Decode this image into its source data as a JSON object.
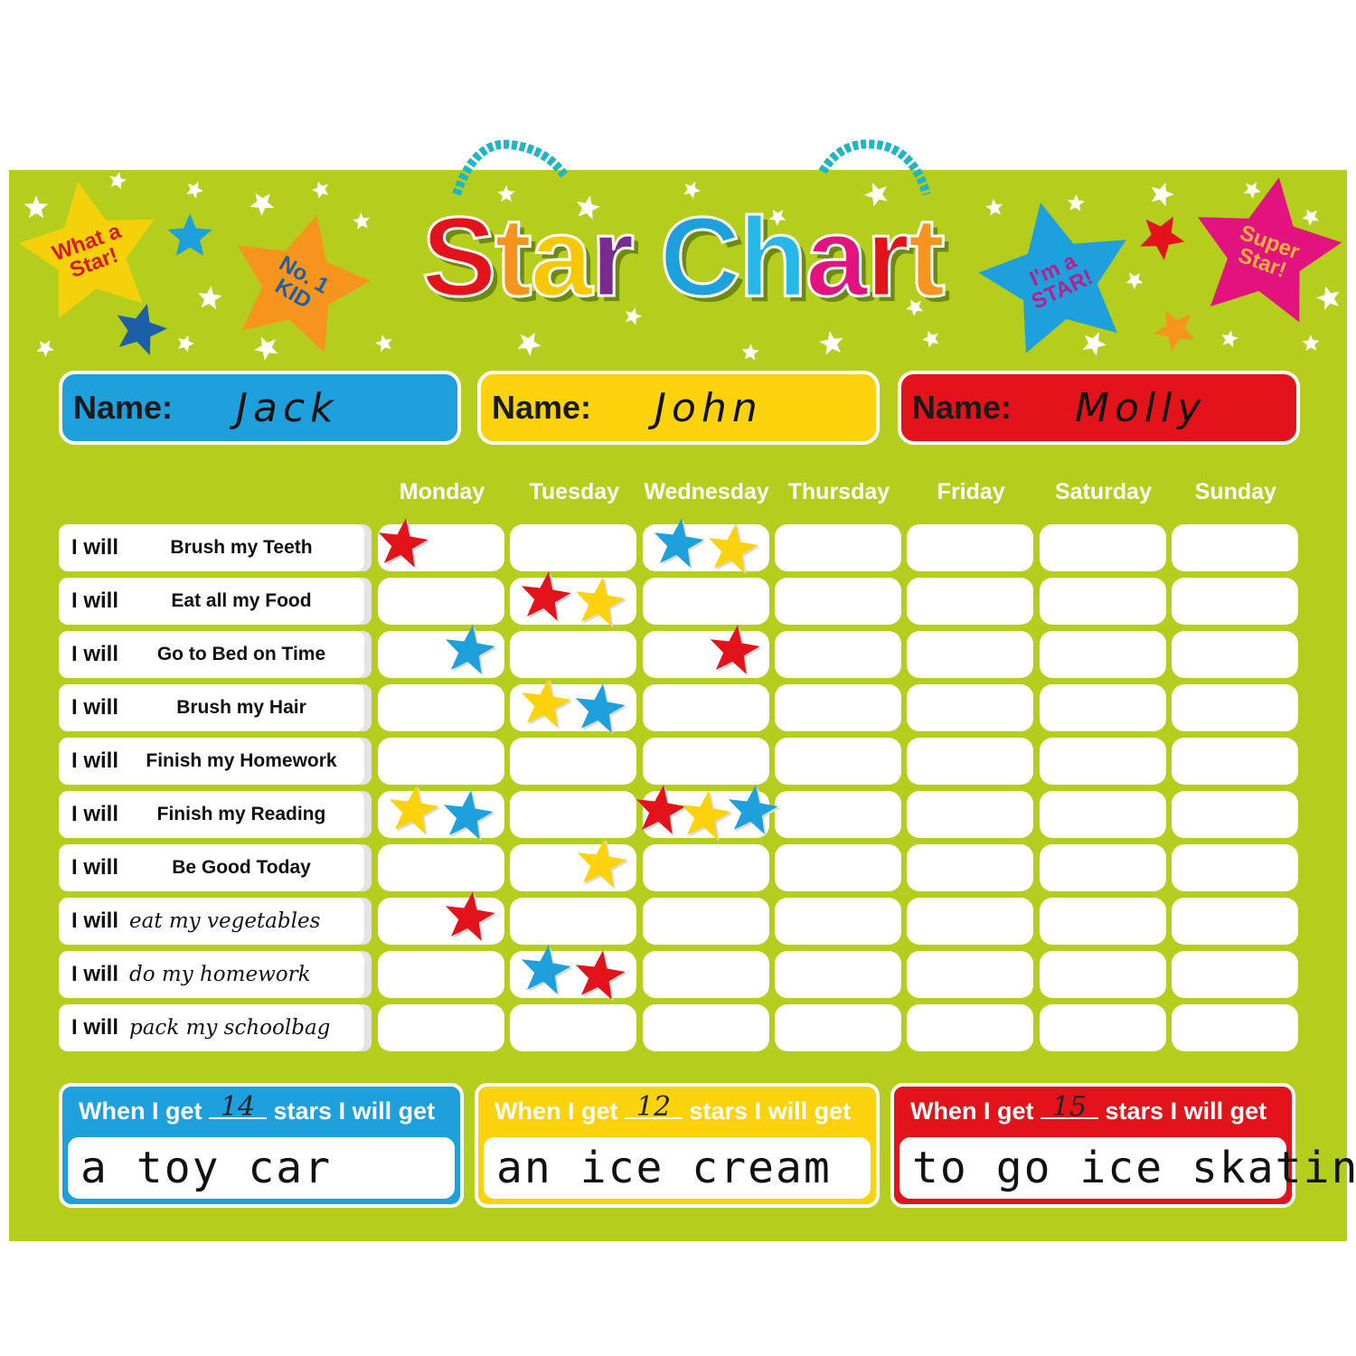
{
  "header": {
    "title_letters": [
      {
        "ch": "S",
        "color": "#e3131b"
      },
      {
        "ch": "t",
        "color": "#f7941d"
      },
      {
        "ch": "a",
        "color": "#f5c800"
      },
      {
        "ch": "r",
        "color": "#7a2b8f"
      },
      {
        "ch": " ",
        "color": "#fff"
      },
      {
        "ch": "C",
        "color": "#1ea0dd"
      },
      {
        "ch": "h",
        "color": "#27b7e8"
      },
      {
        "ch": "a",
        "color": "#e2127f"
      },
      {
        "ch": "r",
        "color": "#e3131b"
      },
      {
        "ch": "t",
        "color": "#f7941d"
      }
    ],
    "badges": [
      {
        "text": "What a Star!",
        "star_color": "#f5d10c",
        "text_color": "#d71920"
      },
      {
        "text": "No. 1 KID",
        "star_color": "#f7941d",
        "text_color": "#1b5fa8"
      },
      {
        "text": "I'm a STAR!",
        "star_color": "#1ea0dd",
        "text_color": "#b0228f"
      },
      {
        "text": "Super Star!",
        "star_color": "#e2127f",
        "text_color": "#fbb040"
      }
    ]
  },
  "names": [
    {
      "label": "Name:",
      "value": "Jack",
      "color": "#1ea0dd"
    },
    {
      "label": "Name:",
      "value": "John",
      "color": "#fcd20d"
    },
    {
      "label": "Name:",
      "value": "Molly",
      "color": "#e3131b"
    }
  ],
  "days": [
    "Monday",
    "Tuesday",
    "Wednesday",
    "Thursday",
    "Friday",
    "Saturday",
    "Sunday"
  ],
  "tasks": [
    {
      "prefix": "I will",
      "text": "Brush my Teeth",
      "handwritten": false
    },
    {
      "prefix": "I will",
      "text": "Eat all my Food",
      "handwritten": false
    },
    {
      "prefix": "I will",
      "text": "Go to Bed on Time",
      "handwritten": false
    },
    {
      "prefix": "I will",
      "text": "Brush my Hair",
      "handwritten": false
    },
    {
      "prefix": "I will",
      "text": "Finish my Homework",
      "handwritten": false
    },
    {
      "prefix": "I will",
      "text": "Finish my Reading",
      "handwritten": false
    },
    {
      "prefix": "I will",
      "text": "Be Good Today",
      "handwritten": false
    },
    {
      "prefix": "I will",
      "text": "eat my vegetables",
      "handwritten": true
    },
    {
      "prefix": "I will",
      "text": "do my homework",
      "handwritten": true
    },
    {
      "prefix": "I will",
      "text": "pack my schoolbag",
      "handwritten": true
    }
  ],
  "stickers": [
    {
      "task": 0,
      "day": 0,
      "colors": [
        "red"
      ]
    },
    {
      "task": 0,
      "day": 2,
      "colors": [
        "blue",
        "yellow"
      ]
    },
    {
      "task": 1,
      "day": 1,
      "colors": [
        "red",
        "yellow"
      ]
    },
    {
      "task": 2,
      "day": 0,
      "colors": [
        "blue"
      ]
    },
    {
      "task": 2,
      "day": 2,
      "colors": [
        "red"
      ]
    },
    {
      "task": 3,
      "day": 1,
      "colors": [
        "yellow",
        "blue"
      ]
    },
    {
      "task": 5,
      "day": 0,
      "colors": [
        "yellow",
        "blue"
      ]
    },
    {
      "task": 5,
      "day": 2,
      "colors": [
        "red",
        "yellow",
        "blue"
      ]
    },
    {
      "task": 6,
      "day": 1,
      "colors": [
        "yellow"
      ]
    },
    {
      "task": 7,
      "day": 0,
      "colors": [
        "red"
      ]
    },
    {
      "task": 8,
      "day": 1,
      "colors": [
        "blue",
        "red"
      ]
    }
  ],
  "sticker_colors": {
    "red": "#e3131b",
    "blue": "#1ea0dd",
    "yellow": "#fcd20d"
  },
  "rewards": [
    {
      "before": "When I get",
      "count": "14",
      "after": "stars I will get",
      "prize": "a toy car",
      "color": "#1ea0dd"
    },
    {
      "before": "When I get",
      "count": "12",
      "after": "stars I will get",
      "prize": "an ice cream",
      "color": "#fcd20d"
    },
    {
      "before": "When I get",
      "count": "15",
      "after": "stars I will get",
      "prize": "to go ice skating",
      "color": "#e3131b"
    }
  ],
  "colors": {
    "board": "#b5cd1c",
    "rope": "#1fb5c4"
  }
}
